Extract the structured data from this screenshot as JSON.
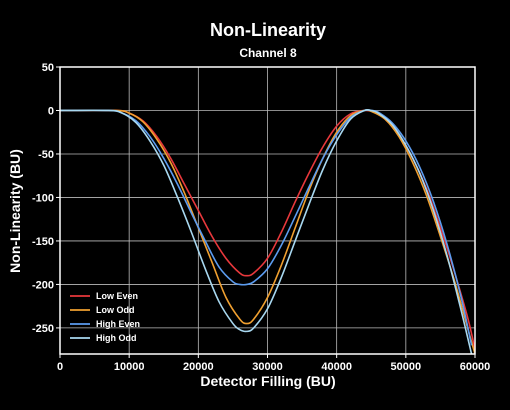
{
  "chart_data": {
    "type": "line",
    "title": "Non-Linearity",
    "subtitle": "Channel 8",
    "xlabel": "Detector Filling (BU)",
    "ylabel": "Non-Linearity (BU)",
    "xlim": [
      0,
      60000
    ],
    "ylim": [
      -280,
      50
    ],
    "xticks": [
      0,
      10000,
      20000,
      30000,
      40000,
      50000,
      60000
    ],
    "yticks": [
      50,
      0,
      -50,
      -100,
      -150,
      -200,
      -250
    ],
    "grid": true,
    "legend_position": "bottom-left",
    "background_color": "#000000",
    "plot_border_color": "#ffffff",
    "grid_color": "#bbbbbb",
    "series": [
      {
        "name": "Low Even",
        "color": "#e8383c",
        "x": [
          0,
          8000,
          10000,
          12000,
          14000,
          16000,
          18000,
          20000,
          22000,
          24000,
          26000,
          27000,
          28000,
          30000,
          32000,
          34000,
          36000,
          38000,
          40000,
          42000,
          44000,
          45500,
          47000,
          49000,
          51000,
          53000,
          55000,
          57000,
          59000,
          60000
        ],
        "y": [
          0,
          0,
          -3,
          -12,
          -30,
          -55,
          -85,
          -115,
          -145,
          -170,
          -187,
          -190,
          -187,
          -170,
          -140,
          -105,
          -72,
          -42,
          -18,
          -4,
          0,
          -2,
          -10,
          -28,
          -55,
          -90,
          -135,
          -185,
          -240,
          -275
        ]
      },
      {
        "name": "Low Odd",
        "color": "#f0a030",
        "x": [
          0,
          8000,
          10000,
          12000,
          14000,
          16000,
          18000,
          20000,
          22000,
          24000,
          26000,
          27000,
          28000,
          30000,
          32000,
          34000,
          36000,
          38000,
          40000,
          42000,
          44000,
          45000,
          47000,
          49000,
          51000,
          53000,
          55000,
          57000,
          59000,
          60000
        ],
        "y": [
          0,
          0,
          -3,
          -13,
          -33,
          -60,
          -95,
          -135,
          -175,
          -215,
          -240,
          -245,
          -240,
          -215,
          -178,
          -135,
          -92,
          -55,
          -25,
          -6,
          0,
          -1,
          -10,
          -30,
          -60,
          -98,
          -145,
          -195,
          -252,
          -280
        ]
      },
      {
        "name": "High Even",
        "color": "#5c9cf0",
        "x": [
          0,
          7000,
          9000,
          11000,
          13000,
          15000,
          17000,
          19000,
          21000,
          23000,
          25000,
          26000,
          27000,
          28000,
          30000,
          32000,
          34000,
          36000,
          38000,
          40000,
          42000,
          44000,
          45000,
          46000,
          48000,
          50000,
          52000,
          54000,
          56000,
          58000,
          59500
        ],
        "y": [
          0,
          0,
          -3,
          -12,
          -30,
          -55,
          -85,
          -118,
          -150,
          -180,
          -197,
          -200,
          -200,
          -197,
          -182,
          -155,
          -122,
          -88,
          -55,
          -28,
          -8,
          0,
          0,
          -2,
          -14,
          -35,
          -65,
          -105,
          -155,
          -215,
          -270
        ]
      },
      {
        "name": "High Odd",
        "color": "#a8d8f0",
        "x": [
          0,
          7000,
          9000,
          11000,
          13000,
          15000,
          17000,
          19000,
          21000,
          23000,
          25000,
          26000,
          27000,
          28000,
          30000,
          32000,
          34000,
          36000,
          38000,
          40000,
          42000,
          44000,
          45000,
          46000,
          48000,
          50000,
          52000,
          54000,
          56000,
          58000,
          59500
        ],
        "y": [
          0,
          0,
          -3,
          -14,
          -35,
          -63,
          -100,
          -140,
          -182,
          -220,
          -245,
          -252,
          -254,
          -250,
          -228,
          -192,
          -150,
          -108,
          -68,
          -35,
          -10,
          0,
          0,
          -3,
          -16,
          -40,
          -72,
          -115,
          -168,
          -230,
          -280
        ]
      }
    ]
  }
}
